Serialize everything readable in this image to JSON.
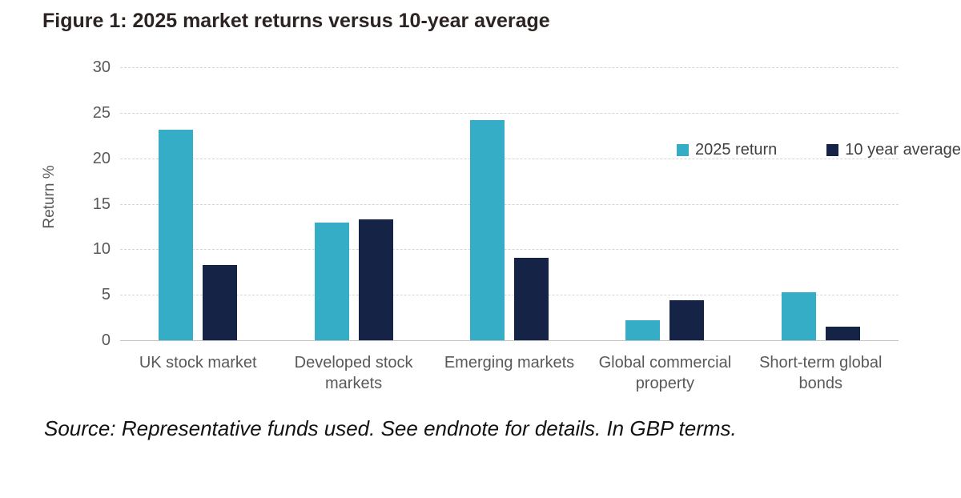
{
  "figure": {
    "title": "Figure 1: 2025 market returns versus 10-year average",
    "source": "Source: Representative funds used. See endnote for details. In GBP terms."
  },
  "chart_data": {
    "type": "bar",
    "title": "Figure 1: 2025 market returns versus 10-year average",
    "categories": [
      "UK stock market",
      "Developed stock markets",
      "Emerging markets",
      "Global commercial property",
      "Short-term global bonds"
    ],
    "series": [
      {
        "name": "2025 return",
        "color": "#36adc7",
        "values": [
          23.1,
          12.9,
          24.2,
          2.2,
          5.3
        ]
      },
      {
        "name": "10 year average",
        "color": "#152347",
        "values": [
          8.3,
          13.3,
          9.1,
          4.4,
          1.5
        ]
      }
    ],
    "xlabel": "",
    "ylabel": "Return %",
    "ylim": [
      0,
      30
    ],
    "yticks": [
      0,
      5,
      10,
      15,
      20,
      25,
      30
    ],
    "grid": "horizontal-dashed",
    "legend_position": "top-right",
    "units": "percent"
  },
  "colors": {
    "series_2025": "#36adc7",
    "series_10yr": "#152347",
    "gridline": "#d6d6d6",
    "axis_line": "#c3c3c3",
    "tick_text": "#595959",
    "title_text": "#2b2422"
  }
}
